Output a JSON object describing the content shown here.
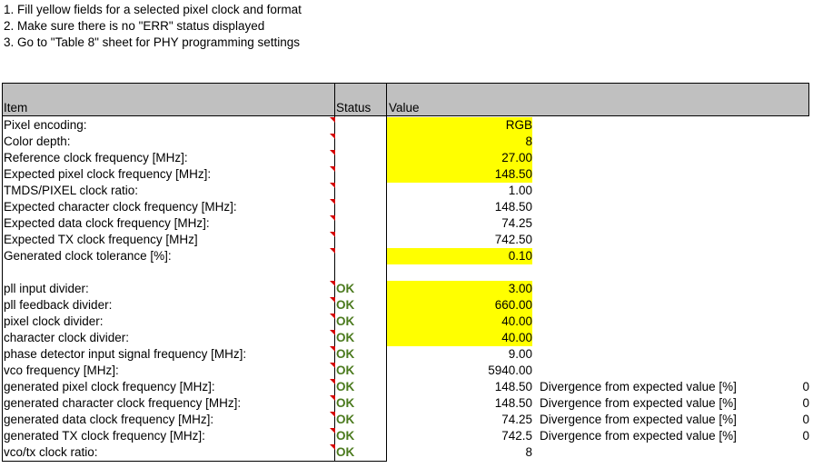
{
  "instructions": [
    "1. Fill yellow fields for a selected pixel clock and format",
    "2. Make sure there is no \"ERR\" status displayed",
    "3. Go to \"Table 8\" sheet for PHY programming settings"
  ],
  "header": {
    "item": "Item",
    "status": "Status",
    "value": "Value"
  },
  "colors": {
    "input_highlight": "#ffff00",
    "ok_text": "#4b7a1e",
    "header_bg": "#c0c0c0",
    "comment_marker": "#d40000"
  },
  "rows": [
    {
      "label": "Pixel encoding:",
      "status": "",
      "value": "RGB"
    },
    {
      "label": "Color depth:",
      "status": "",
      "value": "8"
    },
    {
      "label": "Reference clock frequency [MHz]:",
      "status": "",
      "value": "27.00"
    },
    {
      "label": "Expected pixel clock frequency [MHz]:",
      "status": "",
      "value": "148.50"
    },
    {
      "label": "TMDS/PIXEL clock ratio:",
      "status": "",
      "value": "1.00"
    },
    {
      "label": "Expected character clock frequency [MHz]:",
      "status": "",
      "value": "148.50"
    },
    {
      "label": "Expected data clock frequency [MHz]:",
      "status": "",
      "value": "74.25"
    },
    {
      "label": "Expected TX clock frequency [MHz]",
      "status": "",
      "value": "742.50"
    },
    {
      "label": "Generated clock tolerance [%]:",
      "status": "",
      "value": "0.10"
    },
    {
      "label": "pll input divider:",
      "status": "OK",
      "value": "3.00"
    },
    {
      "label": "pll feedback divider:",
      "status": "OK",
      "value": "660.00"
    },
    {
      "label": "pixel clock divider:",
      "status": "OK",
      "value": "40.00"
    },
    {
      "label": "character clock divider:",
      "status": "OK",
      "value": "40.00"
    },
    {
      "label": "phase detector input signal frequency [MHz]:",
      "status": "OK",
      "value": "9.00"
    },
    {
      "label": "vco frequency [MHz]:",
      "status": "OK",
      "value": "5940.00"
    },
    {
      "label": "generated pixel clock frequency [MHz]:",
      "status": "OK",
      "value": "148.50",
      "divergence_label": "Divergence from expected value [%]",
      "divergence_value": "0"
    },
    {
      "label": "generated character clock frequency [MHz]:",
      "status": "OK",
      "value": "148.50",
      "divergence_label": "Divergence from expected value [%]",
      "divergence_value": "0"
    },
    {
      "label": "generated data clock frequency [MHz]:",
      "status": "OK",
      "value": "74.25",
      "divergence_label": "Divergence from expected value [%]",
      "divergence_value": "0"
    },
    {
      "label": "generated TX clock frequency [MHz]:",
      "status": "OK",
      "value": "742.5",
      "divergence_label": "Divergence from expected value [%]",
      "divergence_value": "0"
    },
    {
      "label": "vco/tx clock ratio:",
      "status": "OK",
      "value": "8"
    }
  ]
}
